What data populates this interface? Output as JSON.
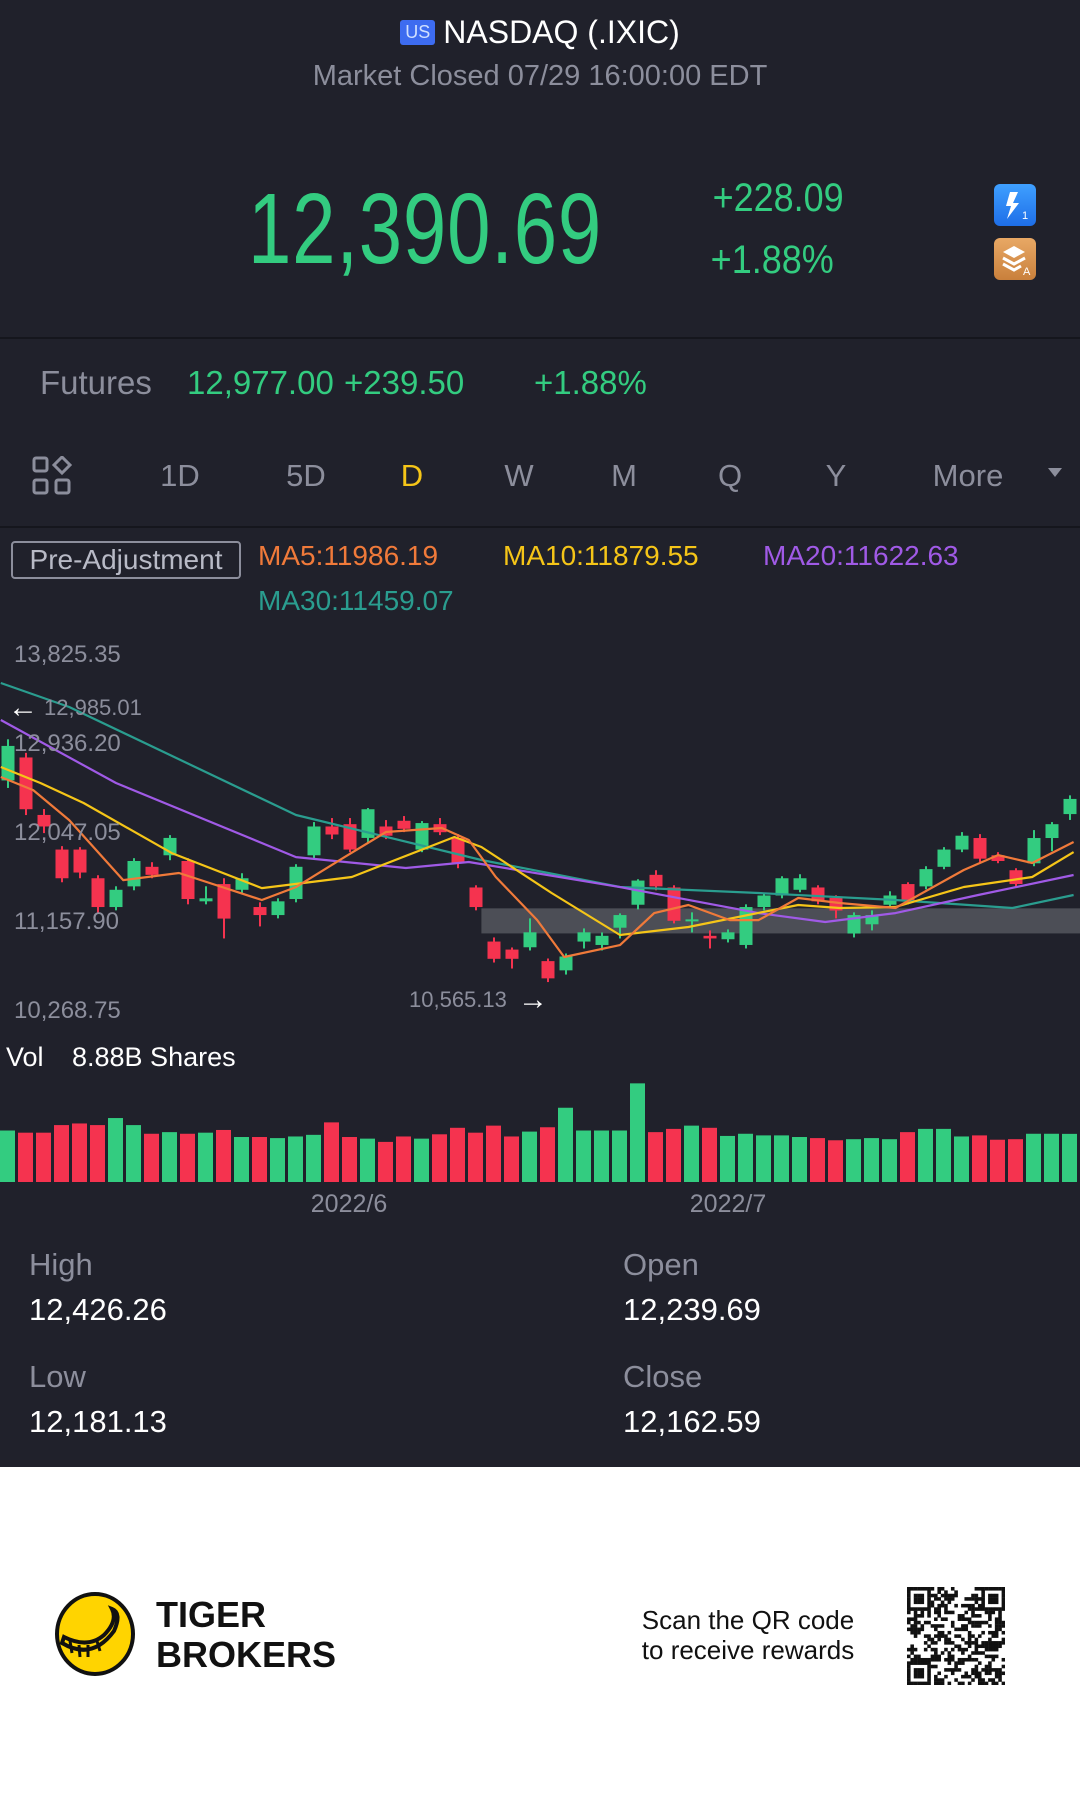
{
  "header": {
    "market_badge": "US",
    "title": "NASDAQ (.IXIC)",
    "status": "Market Closed 07/29 16:00:00 EDT"
  },
  "quote": {
    "price": "12,390.69",
    "change": "+228.09",
    "change_pct": "+1.88%",
    "icons": [
      "lightning-level1-icon",
      "layers-a-icon"
    ]
  },
  "futures": {
    "label": "Futures",
    "price": "12,977.00",
    "change": "+239.50",
    "change_pct": "+1.88%"
  },
  "tabs": {
    "grid_icon": "grid-icon",
    "items": [
      "1D",
      "5D",
      "D",
      "W",
      "M",
      "Q",
      "Y",
      "More"
    ],
    "active": "D"
  },
  "indicators": {
    "adjustment": "Pre-Adjustment",
    "ma5": "MA5:11986.19",
    "ma10": "MA10:11879.55",
    "ma20": "MA20:11622.63",
    "ma30": "MA30:11459.07"
  },
  "colors": {
    "up": "#33cc80",
    "down": "#f5334f",
    "ma5": "#f07a3a",
    "ma10": "#f5c518",
    "ma20": "#a05ae6",
    "ma30": "#2a9d8f",
    "background": "#20212b"
  },
  "chart_data": {
    "type": "candlestick",
    "y_ticks": [
      "13,825.35",
      "12,936.20",
      "12,047.05",
      "11,157.90",
      "10,268.75"
    ],
    "y_tick_values": [
      13825.35,
      12936.2,
      12047.05,
      11157.9,
      10268.75
    ],
    "x_ticks": [
      {
        "label": "2022/6",
        "index": 19
      },
      {
        "label": "2022/7",
        "index": 40
      }
    ],
    "max_marker": {
      "label": "12,985.01",
      "index": 0
    },
    "min_marker": {
      "label": "10,565.13",
      "index": 30
    },
    "highlight_zone": {
      "from_index": 26.3,
      "low": 11050,
      "high": 11300
    },
    "ohlc": [
      [
        12575,
        12985.01,
        12500,
        12919
      ],
      [
        12804,
        12850,
        12230,
        12288
      ],
      [
        12231,
        12290,
        12050,
        12116
      ],
      [
        11886,
        11920,
        11560,
        11600
      ],
      [
        11886,
        11910,
        11600,
        11657
      ],
      [
        11600,
        11630,
        11250,
        11313
      ],
      [
        11313,
        11520,
        11280,
        11485
      ],
      [
        11519,
        11800,
        11480,
        11772
      ],
      [
        11714,
        11760,
        11600,
        11634
      ],
      [
        11829,
        12030,
        11780,
        12002
      ],
      [
        11772,
        11800,
        11340,
        11393
      ],
      [
        11370,
        11520,
        11340,
        11400
      ],
      [
        11542,
        11600,
        11000,
        11198
      ],
      [
        11485,
        11650,
        11440,
        11600
      ],
      [
        11313,
        11360,
        11120,
        11233
      ],
      [
        11233,
        11400,
        11200,
        11370
      ],
      [
        11393,
        11740,
        11360,
        11714
      ],
      [
        11829,
        12160,
        11800,
        12116
      ],
      [
        12116,
        12200,
        11990,
        12036
      ],
      [
        12139,
        12200,
        11860,
        11886
      ],
      [
        12002,
        12300,
        11950,
        12288
      ],
      [
        12116,
        12180,
        11990,
        12024
      ],
      [
        12173,
        12220,
        12060,
        12093
      ],
      [
        11886,
        12170,
        11860,
        12150
      ],
      [
        12139,
        12200,
        12030,
        12059
      ],
      [
        12001,
        12040,
        11700,
        11749
      ],
      [
        11508,
        11530,
        11280,
        11313
      ],
      [
        10969,
        11010,
        10760,
        10797
      ],
      [
        10889,
        10910,
        10700,
        10797
      ],
      [
        10912,
        11200,
        10880,
        11061
      ],
      [
        10774,
        10800,
        10565.13,
        10602
      ],
      [
        10682,
        10850,
        10640,
        10820
      ],
      [
        10969,
        11100,
        10900,
        11061
      ],
      [
        10935,
        11060,
        10880,
        11026
      ],
      [
        11107,
        11250,
        11000,
        11233
      ],
      [
        11336,
        11590,
        11290,
        11577
      ],
      [
        11634,
        11680,
        11480,
        11519
      ],
      [
        11508,
        11530,
        11150,
        11176
      ],
      [
        11176,
        11260,
        11060,
        11190
      ],
      [
        11026,
        11080,
        10900,
        11000
      ],
      [
        10992,
        11090,
        10960,
        11061
      ],
      [
        10935,
        11340,
        10900,
        11313
      ],
      [
        11313,
        11450,
        11280,
        11428
      ],
      [
        11428,
        11620,
        11400,
        11600
      ],
      [
        11485,
        11640,
        11460,
        11600
      ],
      [
        11508,
        11530,
        11340,
        11370
      ],
      [
        11405,
        11430,
        11200,
        11278
      ],
      [
        11049,
        11260,
        11010,
        11233
      ],
      [
        11141,
        11280,
        11080,
        11233
      ],
      [
        11336,
        11470,
        11300,
        11428
      ],
      [
        11542,
        11560,
        11340,
        11370
      ],
      [
        11519,
        11720,
        11490,
        11691
      ],
      [
        11714,
        11910,
        11690,
        11886
      ],
      [
        11886,
        12060,
        11860,
        12024
      ],
      [
        12001,
        12040,
        11760,
        11795
      ],
      [
        11829,
        11860,
        11750,
        11772
      ],
      [
        11680,
        11700,
        11510,
        11542
      ],
      [
        11749,
        12080,
        11720,
        12001
      ],
      [
        12001,
        12160,
        11870,
        12139
      ],
      [
        12239.69,
        12426.26,
        12181.13,
        12390.69
      ]
    ],
    "volume_label": "Vol",
    "volume_value": "8.88B Shares",
    "volume_billions": [
      9.5,
      9.1,
      9.1,
      10.5,
      10.8,
      10.5,
      11.8,
      10.5,
      8.9,
      9.2,
      8.9,
      9.1,
      9.6,
      8.3,
      8.3,
      8.1,
      8.4,
      8.7,
      11.0,
      8.3,
      8.0,
      7.4,
      8.4,
      8.0,
      8.8,
      10.0,
      9.1,
      10.4,
      8.4,
      9.3,
      10.1,
      13.7,
      9.5,
      9.5,
      9.5,
      18.2,
      9.2,
      9.8,
      10.4,
      10.0,
      8.5,
      8.9,
      8.6,
      8.6,
      8.3,
      8.1,
      7.7,
      7.9,
      8.1,
      7.9,
      9.2,
      9.8,
      9.8,
      8.4,
      8.6,
      7.8,
      7.9,
      8.9,
      8.9,
      8.88
    ],
    "moving_averages": {
      "ma5": [
        [
          -0.4,
          12609
        ],
        [
          1.4,
          12479
        ],
        [
          3.4,
          12180
        ],
        [
          6.4,
          11582
        ],
        [
          9.5,
          11652
        ],
        [
          14.1,
          11383
        ],
        [
          16,
          11512
        ],
        [
          18.7,
          11811
        ],
        [
          21,
          12061
        ],
        [
          24.1,
          12101
        ],
        [
          25.6,
          11981
        ],
        [
          27.1,
          11612
        ],
        [
          29.4,
          11183
        ],
        [
          30.9,
          10815
        ],
        [
          34,
          10934
        ],
        [
          35.9,
          11253
        ],
        [
          37.8,
          11333
        ],
        [
          40.1,
          11183
        ],
        [
          41.7,
          11183
        ],
        [
          43.9,
          11403
        ],
        [
          46.2,
          11353
        ],
        [
          49.3,
          11303
        ],
        [
          53.1,
          11682
        ],
        [
          55,
          11831
        ],
        [
          56.9,
          11752
        ],
        [
          59.2,
          11961
        ]
      ],
      "ma10": [
        [
          -0.4,
          12709
        ],
        [
          1.8,
          12549
        ],
        [
          4.2,
          12350
        ],
        [
          9.1,
          11851
        ],
        [
          14.1,
          11502
        ],
        [
          19.1,
          11612
        ],
        [
          24.8,
          12011
        ],
        [
          26.3,
          11911
        ],
        [
          30.2,
          11453
        ],
        [
          34,
          11034
        ],
        [
          37.8,
          11114
        ],
        [
          43.9,
          11333
        ],
        [
          46.2,
          11303
        ],
        [
          49.3,
          11313
        ],
        [
          53.1,
          11513
        ],
        [
          56.9,
          11612
        ],
        [
          59.2,
          11861
        ]
      ],
      "ma20": [
        [
          -0.4,
          13177
        ],
        [
          6,
          12549
        ],
        [
          16,
          11811
        ],
        [
          22.1,
          11702
        ],
        [
          25.6,
          11762
        ],
        [
          34,
          11512
        ],
        [
          41.7,
          11253
        ],
        [
          45.4,
          11164
        ],
        [
          49.3,
          11253
        ],
        [
          53.9,
          11433
        ],
        [
          59.2,
          11632
        ]
      ],
      "ma30": [
        [
          -0.4,
          13546
        ],
        [
          3.4,
          13307
        ],
        [
          16,
          12230
        ],
        [
          26.3,
          11782
        ],
        [
          34,
          11513
        ],
        [
          41.7,
          11453
        ],
        [
          49.3,
          11383
        ],
        [
          55.8,
          11303
        ],
        [
          59.2,
          11433
        ]
      ]
    }
  },
  "stats": [
    {
      "label": "High",
      "value": "12,426.26"
    },
    {
      "label": "Open",
      "value": "12,239.69"
    },
    {
      "label": "Low",
      "value": "12,181.13"
    },
    {
      "label": "Close",
      "value": "12,162.59"
    }
  ],
  "footer": {
    "brand_line1": "TIGER",
    "brand_line2": "BROKERS",
    "scan_line1": "Scan the QR code",
    "scan_line2": "to receive rewards"
  }
}
